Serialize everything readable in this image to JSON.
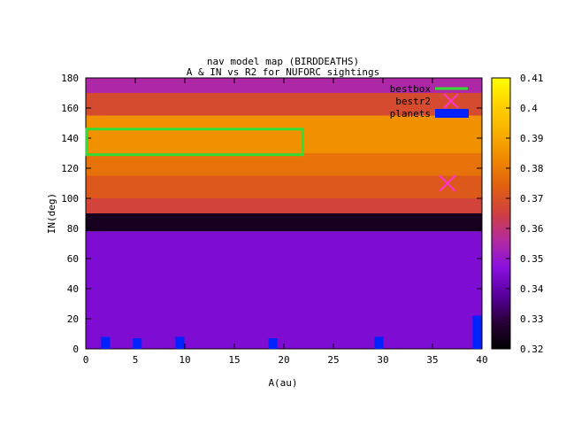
{
  "chart_data": {
    "type": "heatmap",
    "title": "nav model map (BIRDDEATHS)",
    "subtitle": "A & IN vs R2 for NUFORC sightings",
    "xlabel": "A(au)",
    "ylabel": "IN(deg)",
    "xlim": [
      0,
      40
    ],
    "ylim": [
      0,
      180
    ],
    "x_ticks": [
      "0",
      "5",
      "10",
      "15",
      "20",
      "25",
      "30",
      "35",
      "40"
    ],
    "y_ticks": [
      "0",
      "20",
      "40",
      "60",
      "80",
      "100",
      "120",
      "140",
      "160",
      "180"
    ],
    "colorbar": {
      "range": [
        0.32,
        0.41
      ],
      "ticks": [
        "0.32",
        "0.33",
        "0.34",
        "0.35",
        "0.36",
        "0.37",
        "0.38",
        "0.39",
        "0.4",
        "0.41"
      ],
      "palette": [
        "#000000",
        "#2a003a",
        "#5a00a0",
        "#8a10e0",
        "#b22aa0",
        "#d04040",
        "#e06010",
        "#f08800",
        "#f8b000",
        "#ffd000",
        "#ffff00"
      ]
    },
    "heatmap_regions": [
      {
        "in_range": [
          170,
          180
        ],
        "value": 0.355
      },
      {
        "in_range": [
          155,
          170
        ],
        "value": 0.368
      },
      {
        "in_range": [
          130,
          155
        ],
        "value": 0.385
      },
      {
        "in_range": [
          115,
          130
        ],
        "value": 0.378
      },
      {
        "in_range": [
          100,
          115
        ],
        "value": 0.372
      },
      {
        "in_range": [
          90,
          100
        ],
        "value": 0.366
      },
      {
        "in_range": [
          78,
          90
        ],
        "value": 0.325
      },
      {
        "in_range": [
          0,
          78
        ],
        "value": 0.345
      }
    ],
    "legend": [
      {
        "label": "bestbox",
        "color": "#33dd33"
      },
      {
        "label": "bestr2",
        "color": "#ff33cc"
      },
      {
        "label": "planets",
        "color": "#0022ff"
      }
    ],
    "legend_position": "top-right",
    "bestbox": {
      "a": [
        0.1,
        21.9
      ],
      "in": [
        129,
        146
      ]
    },
    "bestr2": {
      "a": 36.5,
      "in": 110
    },
    "planets": [
      {
        "a": 2.0,
        "in": 8
      },
      {
        "a": 5.2,
        "in": 7
      },
      {
        "a": 9.5,
        "in": 8
      },
      {
        "a": 18.9,
        "in": 7
      },
      {
        "a": 29.6,
        "in": 8
      },
      {
        "a": 39.5,
        "in": 22
      }
    ]
  }
}
